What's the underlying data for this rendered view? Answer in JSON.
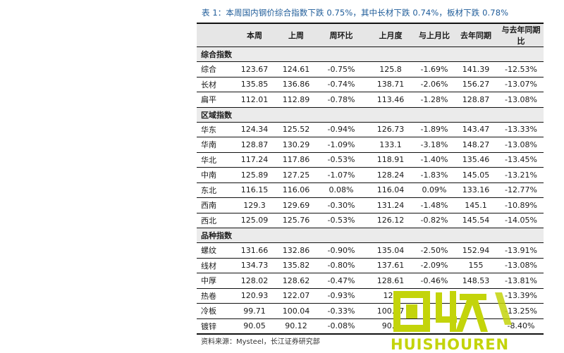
{
  "caption": "表 1：本周国内钢价综合指数下跌 0.75%，其中长材下跌 0.74%，板材下跌 0.78%",
  "headers": [
    "",
    "本周",
    "上周",
    "周环比",
    "上月度",
    "与上月比",
    "去年同期",
    "与去年同期比"
  ],
  "sections": [
    {
      "title": "综合指数",
      "rows": [
        [
          "综合",
          "123.67",
          "124.61",
          "-0.75%",
          "125.8",
          "-1.69%",
          "141.39",
          "-12.53%"
        ],
        [
          "长材",
          "135.85",
          "136.86",
          "-0.74%",
          "138.71",
          "-2.06%",
          "156.27",
          "-13.07%"
        ],
        [
          "扁平",
          "112.01",
          "112.89",
          "-0.78%",
          "113.46",
          "-1.28%",
          "128.87",
          "-13.08%"
        ]
      ]
    },
    {
      "title": "区域指数",
      "rows": [
        [
          "华东",
          "124.34",
          "125.52",
          "-0.94%",
          "126.73",
          "-1.89%",
          "143.47",
          "-13.33%"
        ],
        [
          "华南",
          "128.87",
          "130.29",
          "-1.09%",
          "133.1",
          "-3.18%",
          "148.27",
          "-13.08%"
        ],
        [
          "华北",
          "117.24",
          "117.86",
          "-0.53%",
          "118.91",
          "-1.40%",
          "135.46",
          "-13.45%"
        ],
        [
          "中南",
          "125.89",
          "127.25",
          "-1.07%",
          "128.24",
          "-1.83%",
          "145.05",
          "-13.21%"
        ],
        [
          "东北",
          "116.15",
          "116.06",
          "0.08%",
          "116.04",
          "0.09%",
          "133.16",
          "-12.77%"
        ],
        [
          "西南",
          "129.3",
          "129.69",
          "-0.30%",
          "131.24",
          "-1.48%",
          "145.1",
          "-10.89%"
        ],
        [
          "西北",
          "125.09",
          "125.76",
          "-0.53%",
          "126.12",
          "-0.82%",
          "145.54",
          "-14.05%"
        ]
      ]
    },
    {
      "title": "品种指数",
      "rows": [
        [
          "螺纹",
          "131.66",
          "132.86",
          "-0.90%",
          "135.04",
          "-2.50%",
          "152.94",
          "-13.91%"
        ],
        [
          "线材",
          "134.73",
          "135.82",
          "-0.80%",
          "137.61",
          "-2.09%",
          "155",
          "-13.08%"
        ],
        [
          "中厚",
          "128.02",
          "128.62",
          "-0.47%",
          "128.61",
          "-0.46%",
          "148.53",
          "-13.81%"
        ],
        [
          "热卷",
          "120.93",
          "122.07",
          "-0.93%",
          "123",
          "",
          "",
          "-13.39%"
        ],
        [
          "冷板",
          "99.71",
          "100.04",
          "-0.33%",
          "100.57",
          "",
          "",
          "-13.25%"
        ],
        [
          "镀锌",
          "90.05",
          "90.12",
          "-0.08%",
          "90.1",
          "",
          "",
          "-8.40%"
        ]
      ]
    }
  ],
  "source": "资料来源：Mysteel，长江证券研究部",
  "watermark": {
    "glyphs": "回收",
    "text": "HUISHOUREN",
    "color": "#c3d40a"
  }
}
